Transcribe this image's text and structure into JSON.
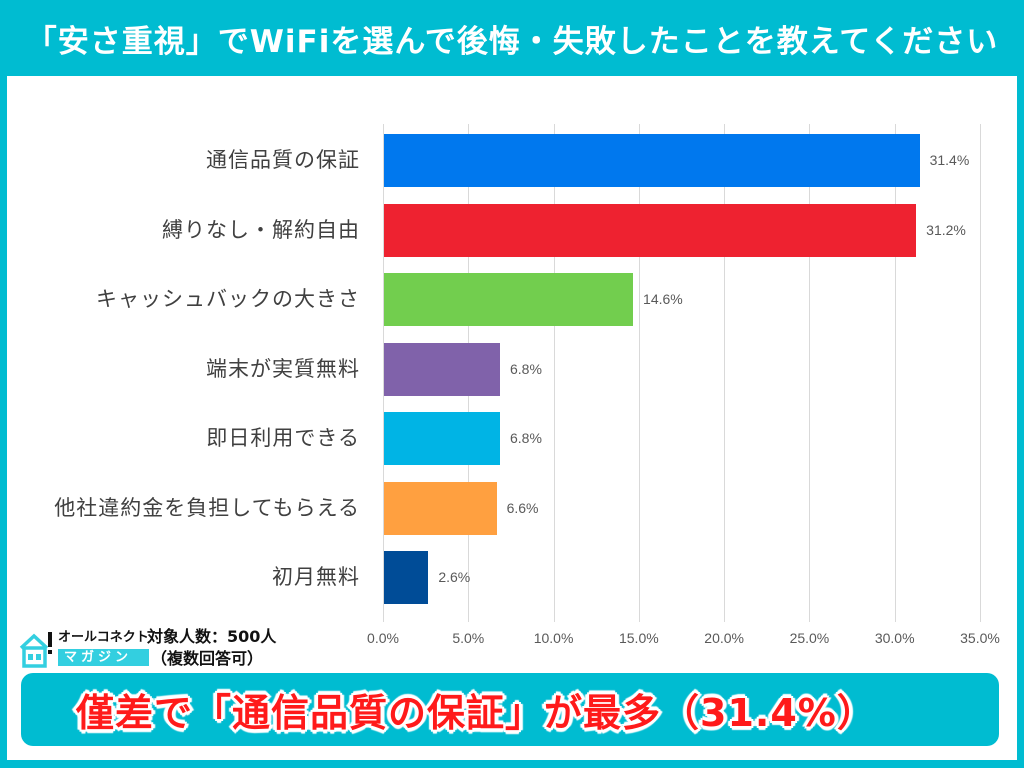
{
  "header": {
    "title": "「安さ重視」でWiFiを選んで後悔・失敗したことを教えてください"
  },
  "colors": {
    "background": "#00BCD1",
    "panel": "#FFFFFF",
    "banner_bg": "#00BCD1",
    "banner_text": "#FF1A1A",
    "gridline": "#D9D9D9"
  },
  "chart_data": {
    "type": "bar",
    "orientation": "horizontal",
    "title": "「安さ重視」でWiFiを選んで後悔・失敗したことを教えてください",
    "xlabel": "",
    "ylabel": "",
    "xlim": [
      0,
      35
    ],
    "grid": true,
    "categories": [
      "通信品質の保証",
      "縛りなし・解約自由",
      "キャッシュバックの大きさ",
      "端末が実質無料",
      "即日利用できる",
      "他社違約金を負担してもらえる",
      "初月無料"
    ],
    "values": [
      31.4,
      31.2,
      14.6,
      6.8,
      6.8,
      6.6,
      2.6
    ],
    "value_labels": [
      "31.4%",
      "31.2%",
      "14.6%",
      "6.8%",
      "6.8%",
      "6.6%",
      "2.6%"
    ],
    "bar_colors": [
      "#0078EE",
      "#EE2230",
      "#72CE4E",
      "#8062AA",
      "#00B4E5",
      "#FFA040",
      "#004C97"
    ],
    "ticks": [
      "0.0%",
      "5.0%",
      "10.0%",
      "15.0%",
      "20.0%",
      "25.0%",
      "30.0%",
      "35.0%"
    ],
    "tick_values": [
      0,
      5,
      10,
      15,
      20,
      25,
      30,
      35
    ]
  },
  "footer": {
    "logo_top": "オールコネクト",
    "logo_bottom": "マガジン",
    "sample_line1": "対象人数：500人",
    "sample_line2": "（複数回答可）"
  },
  "banner": {
    "text": "僅差で「通信品質の保証」が最多（31.4%）"
  }
}
